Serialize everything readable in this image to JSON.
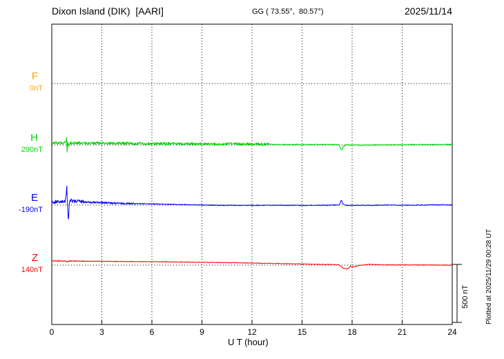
{
  "header": {
    "station": "Dixon Island (DIK)  [AARI]",
    "coords": "GG ( 73.55°,  80.57°)",
    "date": "2025/11/14"
  },
  "side": {
    "plotted_note": "Plotted at 2025/11/29 00:28 UT",
    "scale_label": "500 nT"
  },
  "chart_data": {
    "type": "line",
    "title": "Dixon Island (DIK) [AARI] magnetogram, 2025/11/14",
    "xlabel": "U T (hour)",
    "x_range": [
      0,
      24
    ],
    "x_ticks": [
      0,
      3,
      6,
      9,
      12,
      15,
      18,
      21,
      24
    ],
    "scale_bar_nT": 500,
    "grid": {
      "vertical_dotted_every_hours": 3,
      "horizontal_dotted": "one dotted baseline per component at its reference value"
    },
    "series": [
      {
        "name": "F",
        "color": "#ffa200",
        "baseline_label": "0nT",
        "baseline_nT": 0,
        "visible": false,
        "points": [],
        "noise": []
      },
      {
        "name": "H",
        "color": "#00d400",
        "baseline_label": "290nT",
        "baseline_nT": 290,
        "visible": true,
        "points": [
          [
            0,
            20
          ],
          [
            0.5,
            17
          ],
          [
            0.85,
            20
          ],
          [
            0.88,
            60
          ],
          [
            0.92,
            -70
          ],
          [
            0.96,
            40
          ],
          [
            1.0,
            -20
          ],
          [
            1.1,
            18
          ],
          [
            1.5,
            16
          ],
          [
            2,
            16
          ],
          [
            3,
            15
          ],
          [
            4,
            14
          ],
          [
            5,
            13
          ],
          [
            6,
            12
          ],
          [
            7,
            11
          ],
          [
            8,
            10
          ],
          [
            9,
            9
          ],
          [
            10,
            8
          ],
          [
            11,
            8
          ],
          [
            12,
            8
          ],
          [
            13,
            5
          ],
          [
            14,
            3
          ],
          [
            15,
            3
          ],
          [
            16,
            3
          ],
          [
            17,
            3
          ],
          [
            17.2,
            2
          ],
          [
            17.35,
            -45
          ],
          [
            17.5,
            -10
          ],
          [
            17.65,
            2
          ],
          [
            18,
            0
          ],
          [
            18.5,
            -2
          ],
          [
            19,
            0
          ],
          [
            20,
            1
          ],
          [
            21,
            2
          ],
          [
            22,
            3
          ],
          [
            23,
            3
          ],
          [
            24,
            4
          ]
        ],
        "noise": [
          {
            "from": 0,
            "to": 13,
            "amp": 12
          },
          {
            "from": 13,
            "to": 24,
            "amp": 4
          }
        ]
      },
      {
        "name": "E",
        "color": "#0000ff",
        "baseline_label": "-190nT",
        "baseline_nT": -190,
        "visible": true,
        "points": [
          [
            0,
            25
          ],
          [
            0.3,
            30
          ],
          [
            0.6,
            25
          ],
          [
            0.8,
            30
          ],
          [
            0.85,
            80
          ],
          [
            0.9,
            170
          ],
          [
            0.95,
            -40
          ],
          [
            1.0,
            -125
          ],
          [
            1.05,
            20
          ],
          [
            1.15,
            40
          ],
          [
            1.3,
            30
          ],
          [
            1.6,
            35
          ],
          [
            2,
            28
          ],
          [
            2.5,
            22
          ],
          [
            3,
            20
          ],
          [
            4,
            15
          ],
          [
            5,
            12
          ],
          [
            6,
            10
          ],
          [
            7,
            6
          ],
          [
            8,
            3
          ],
          [
            9,
            0
          ],
          [
            10,
            -2
          ],
          [
            11,
            -3
          ],
          [
            12,
            -3
          ],
          [
            13,
            -2
          ],
          [
            14,
            -2
          ],
          [
            15,
            -3
          ],
          [
            16,
            -2
          ],
          [
            17,
            0
          ],
          [
            17.25,
            2
          ],
          [
            17.35,
            45
          ],
          [
            17.45,
            10
          ],
          [
            17.6,
            -2
          ],
          [
            18,
            -3
          ],
          [
            19,
            -2
          ],
          [
            20,
            0
          ],
          [
            21,
            -2
          ],
          [
            22,
            0
          ],
          [
            23,
            1
          ],
          [
            24,
            2
          ]
        ],
        "noise": [
          {
            "from": 0,
            "to": 2,
            "amp": 15
          },
          {
            "from": 2,
            "to": 5,
            "amp": 8
          },
          {
            "from": 5,
            "to": 24,
            "amp": 3.5
          }
        ]
      },
      {
        "name": "Z",
        "color": "#ff0000",
        "baseline_label": "140nT",
        "baseline_nT": 140,
        "visible": true,
        "points": [
          [
            0,
            36
          ],
          [
            0.8,
            34
          ],
          [
            0.95,
            28
          ],
          [
            1.1,
            36
          ],
          [
            2,
            34
          ],
          [
            3,
            33
          ],
          [
            5,
            30
          ],
          [
            7,
            28
          ],
          [
            9,
            24
          ],
          [
            11,
            20
          ],
          [
            13,
            15
          ],
          [
            15,
            10
          ],
          [
            16,
            6
          ],
          [
            17,
            4
          ],
          [
            17.2,
            2
          ],
          [
            17.45,
            -25
          ],
          [
            17.7,
            -35
          ],
          [
            17.9,
            -10
          ],
          [
            18.1,
            -16
          ],
          [
            18.4,
            -4
          ],
          [
            18.8,
            4
          ],
          [
            19,
            6
          ],
          [
            20,
            2
          ],
          [
            21,
            2
          ],
          [
            22,
            1
          ],
          [
            23,
            1
          ],
          [
            24,
            0
          ]
        ],
        "noise": [
          {
            "from": 0,
            "to": 2,
            "amp": 4
          },
          {
            "from": 2,
            "to": 24,
            "amp": 2.5
          }
        ]
      }
    ]
  }
}
